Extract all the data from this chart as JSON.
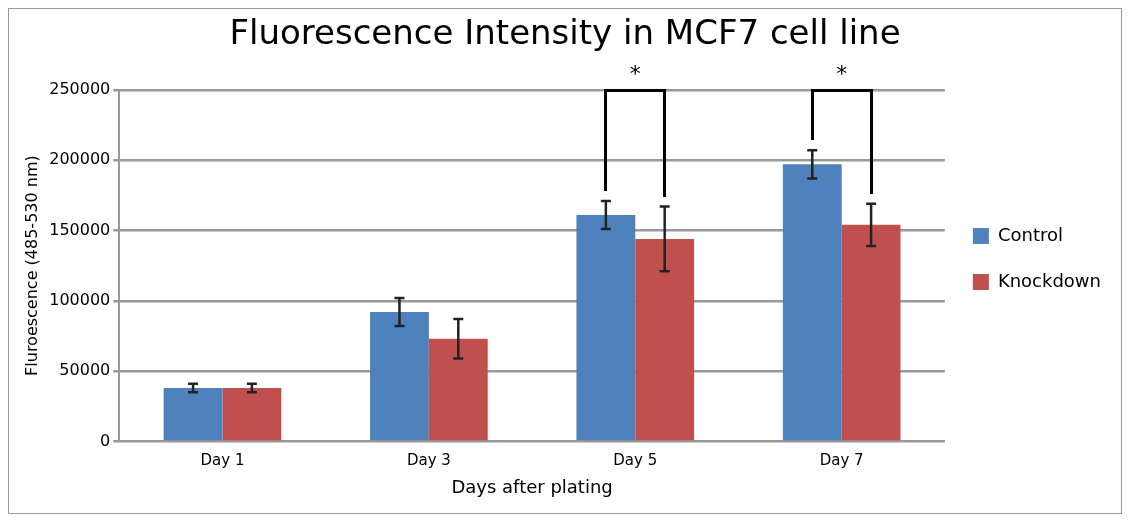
{
  "chart_data": {
    "type": "bar",
    "title": "Fluorescence Intensity in MCF7 cell line",
    "xlabel": "Days after plating",
    "ylabel": "Fluroescence (485-530 nm)",
    "categories": [
      "Day 1",
      "Day 3",
      "Day 5",
      "Day 7"
    ],
    "series": [
      {
        "name": "Control",
        "color": "#4f81bd",
        "values": [
          38000,
          92000,
          161000,
          197000
        ],
        "errors": [
          3000,
          10000,
          10000,
          10000
        ]
      },
      {
        "name": "Knockdown",
        "color": "#c0504d",
        "values": [
          38000,
          73000,
          144000,
          154000
        ],
        "errors": [
          3000,
          14000,
          23000,
          15000
        ]
      }
    ],
    "ylim": [
      0,
      250000
    ],
    "yticks": [
      0,
      50000,
      100000,
      150000,
      200000,
      250000
    ],
    "grid": "y",
    "legend": "right",
    "annotations": [
      "*",
      "*"
    ]
  }
}
